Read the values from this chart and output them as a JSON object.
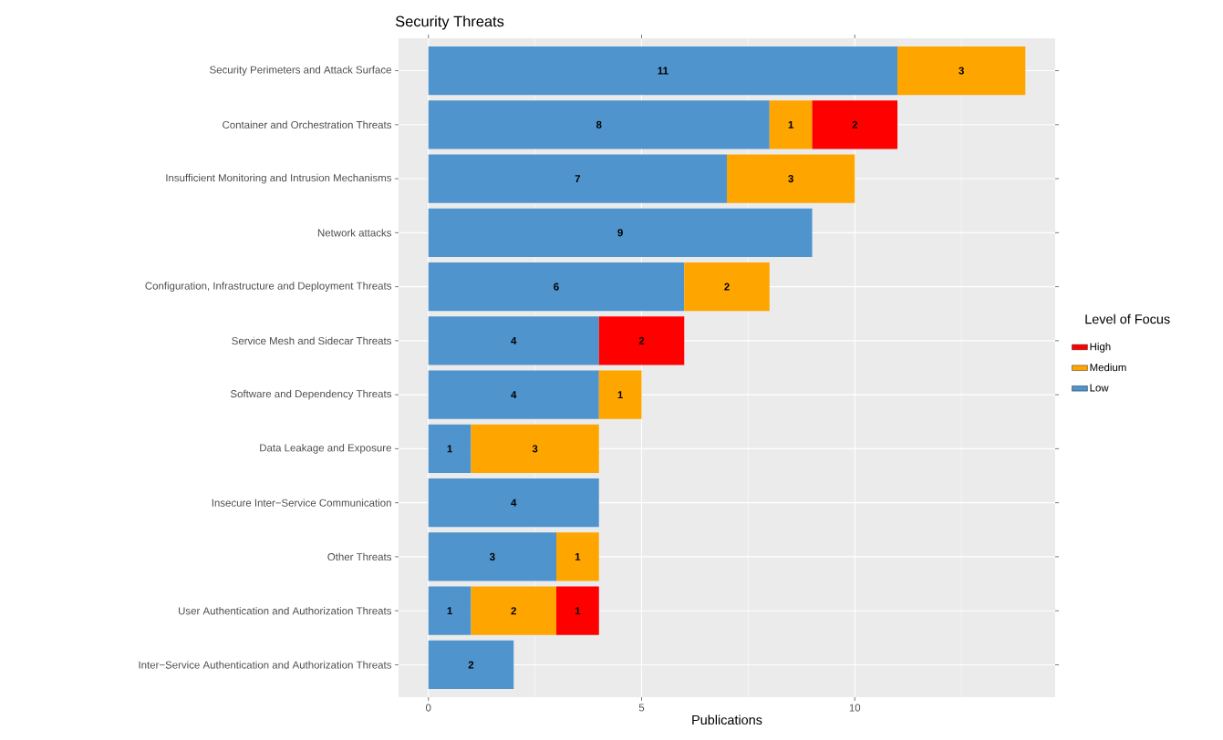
{
  "chart_data": {
    "type": "bar",
    "orientation": "horizontal",
    "stacked": true,
    "title": "Security Threats",
    "xlabel": "Publications",
    "legend_title": "Level of Focus",
    "legend": "right",
    "grid": true,
    "data_labels": true,
    "categories": [
      "Security Perimeters and Attack Surface",
      "Container and Orchestration Threats",
      "Insufficient Monitoring and Intrusion Mechanisms",
      "Network attacks",
      "Configuration, Infrastructure and Deployment Threats",
      "Service Mesh and Sidecar Threats",
      "Software and Dependency Threats",
      "Data Leakage and Exposure",
      "Insecure Inter−Service Communication",
      "Other Threats",
      "User Authentication and Authorization Threats",
      "Inter−Service Authentication and Authorization Threats"
    ],
    "series": [
      {
        "name": "Low",
        "color": "#4f94cd",
        "values": [
          11,
          8,
          7,
          9,
          6,
          4,
          4,
          1,
          4,
          3,
          1,
          2
        ]
      },
      {
        "name": "Medium",
        "color": "#ffa500",
        "values": [
          3,
          1,
          3,
          null,
          2,
          null,
          1,
          3,
          null,
          1,
          2,
          null
        ]
      },
      {
        "name": "High",
        "color": "#ff0000",
        "values": [
          null,
          2,
          null,
          null,
          null,
          2,
          null,
          null,
          null,
          null,
          1,
          null
        ]
      }
    ],
    "xlim": [
      -0.7,
      14.7
    ],
    "xticks": [
      0,
      5,
      10
    ]
  }
}
